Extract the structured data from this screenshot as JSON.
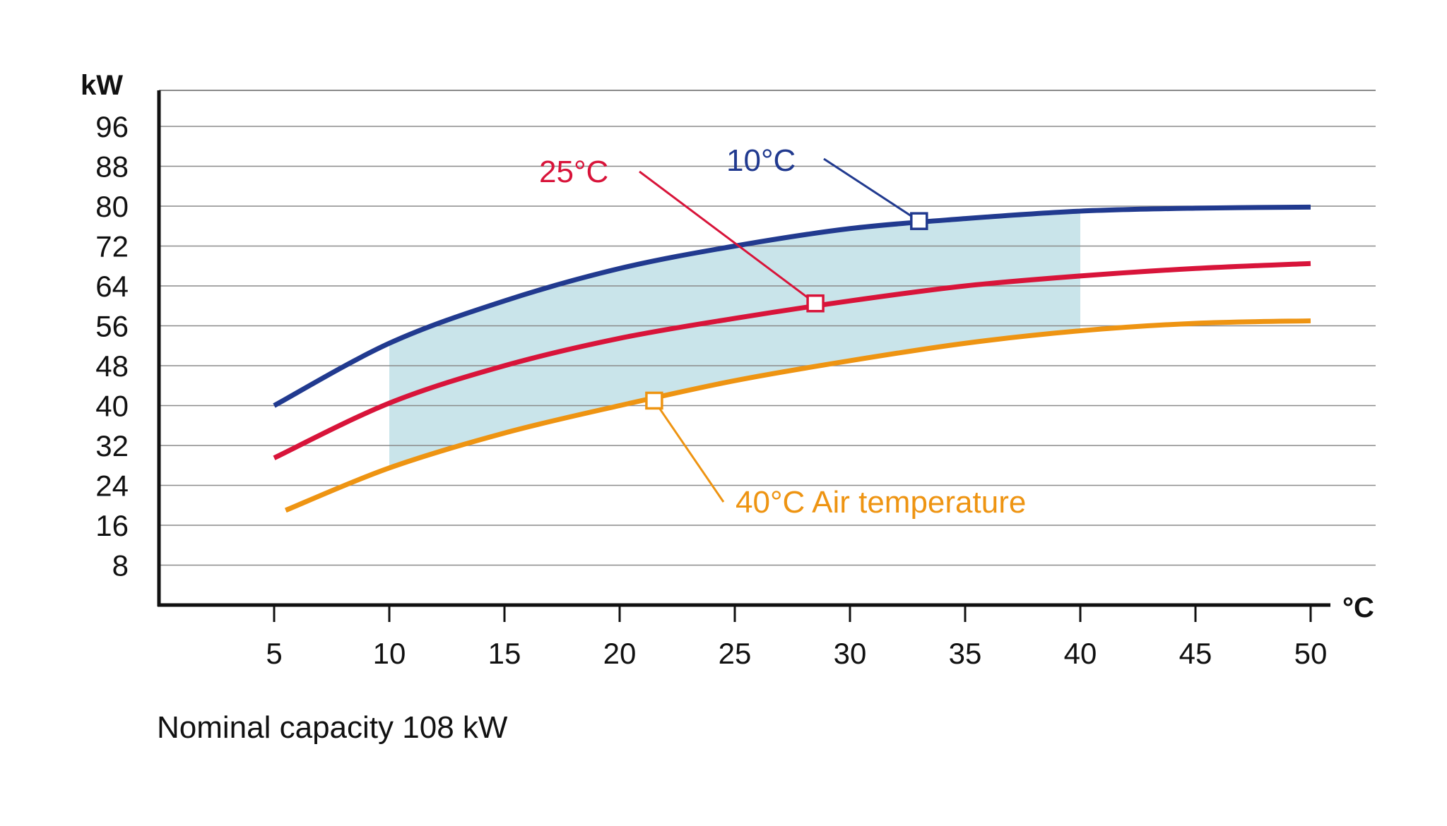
{
  "chart_data": {
    "type": "line",
    "title": "",
    "xlabel": "°C",
    "ylabel": "kW",
    "xlim": [
      0,
      50
    ],
    "ylim": [
      0,
      104
    ],
    "x_ticks": [
      5,
      10,
      15,
      20,
      25,
      30,
      35,
      40,
      45,
      50
    ],
    "y_ticks": [
      8,
      16,
      24,
      32,
      40,
      48,
      56,
      64,
      72,
      80,
      88,
      96
    ],
    "grid": true,
    "shaded_region": {
      "x_range": [
        10,
        40
      ],
      "color": "#c9e4ea"
    },
    "series": [
      {
        "name": "10°C",
        "color": "#213a8f",
        "x": [
          5,
          10,
          15,
          20,
          25,
          30,
          35,
          40,
          45,
          50
        ],
        "y": [
          40,
          52.5,
          61,
          67.5,
          72,
          75.5,
          77.5,
          79,
          79.6,
          79.8
        ],
        "marker": {
          "x": 33,
          "y": 77
        }
      },
      {
        "name": "25°C",
        "color": "#d8143a",
        "x": [
          5,
          10,
          15,
          20,
          25,
          30,
          35,
          40,
          45,
          50
        ],
        "y": [
          29.5,
          40.5,
          48,
          53.5,
          57.5,
          61,
          64,
          66,
          67.5,
          68.5
        ],
        "marker": {
          "x": 28.5,
          "y": 60.5
        }
      },
      {
        "name": "40°C Air temperature",
        "color": "#ee9412",
        "x": [
          5.5,
          10,
          15,
          20,
          25,
          30,
          35,
          40,
          45,
          50
        ],
        "y": [
          19,
          27.5,
          34.5,
          40,
          45,
          49,
          52.5,
          55,
          56.5,
          57
        ],
        "marker": {
          "x": 21.5,
          "y": 41
        }
      }
    ]
  },
  "footnote": "Nominal capacity 108 kW"
}
